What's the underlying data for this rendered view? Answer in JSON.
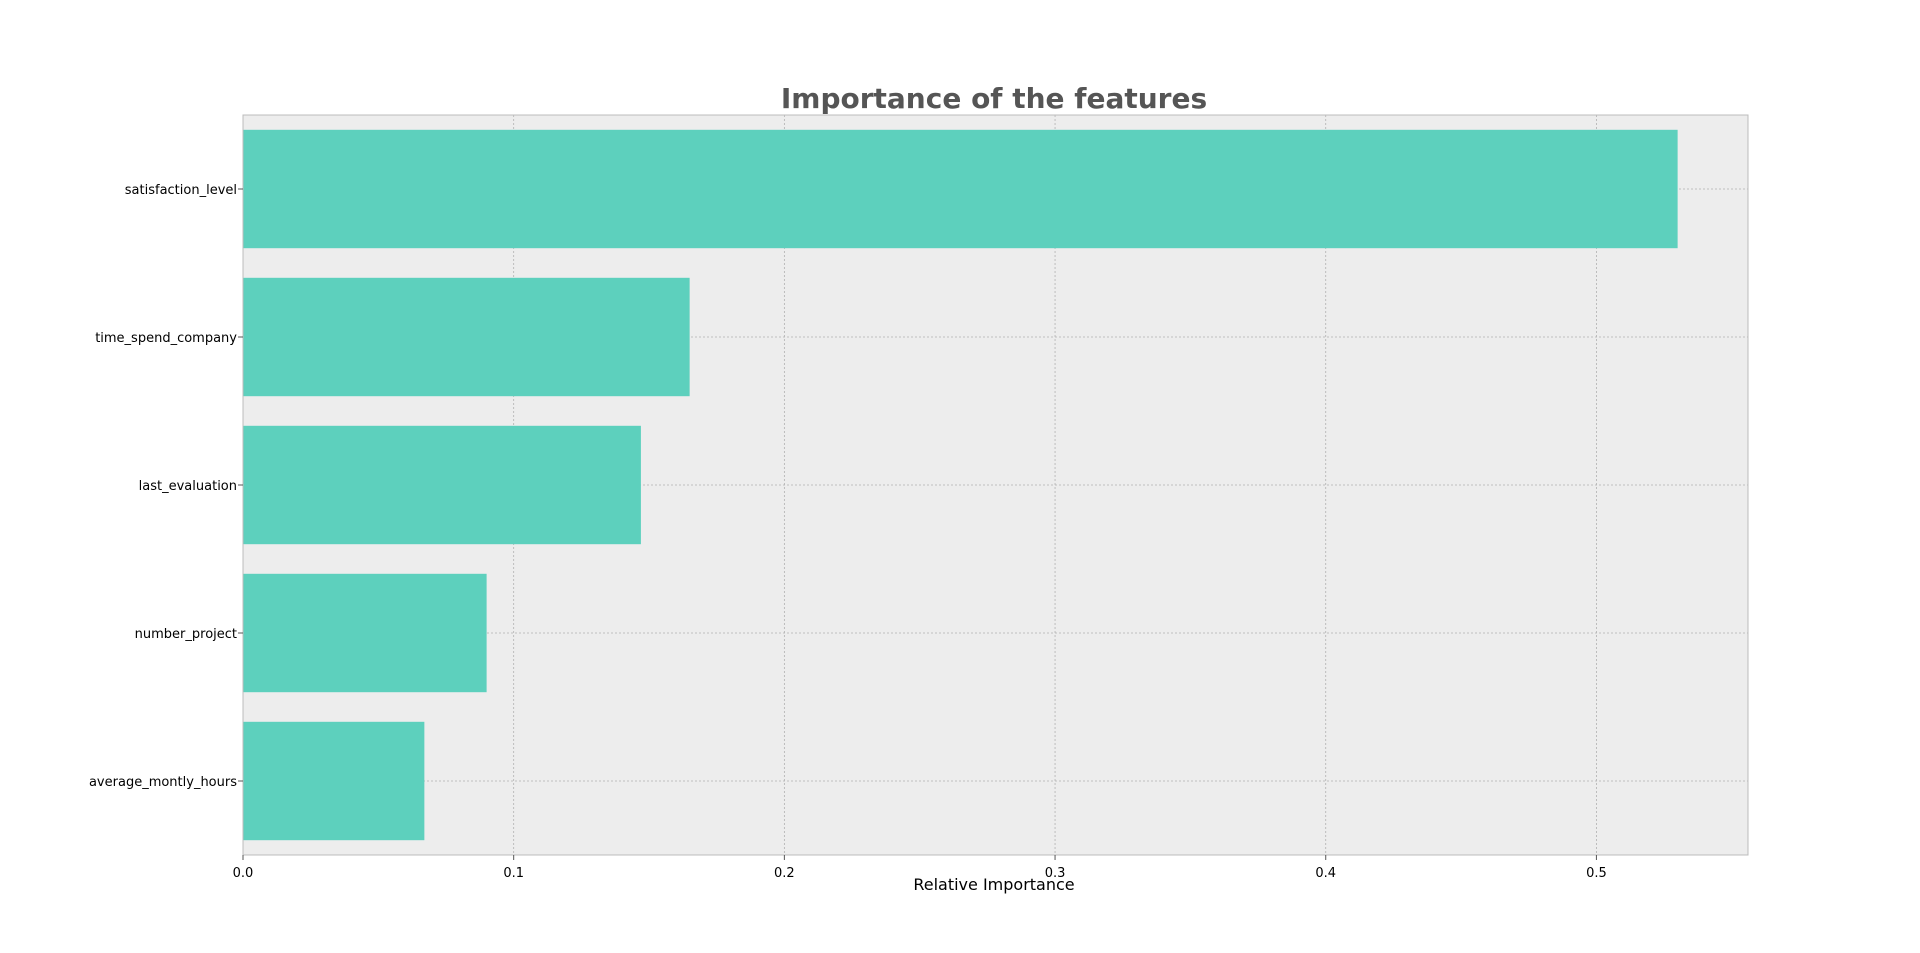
{
  "chart_data": {
    "type": "bar",
    "orientation": "horizontal",
    "title": "Importance of the features",
    "xlabel": "Relative Importance",
    "ylabel": "",
    "categories": [
      "satisfaction_level",
      "time_spend_company",
      "last_evaluation",
      "number_project",
      "average_montly_hours"
    ],
    "values": [
      0.53,
      0.165,
      0.147,
      0.09,
      0.067
    ],
    "xlim": [
      0.0,
      0.556
    ],
    "xticks": [
      0.0,
      0.1,
      0.2,
      0.3,
      0.4,
      0.5
    ],
    "xtick_labels": [
      "0.0",
      "0.1",
      "0.2",
      "0.3",
      "0.4",
      "0.5"
    ],
    "grid": true,
    "colors": {
      "bar": "#5dd0bd",
      "plot_background": "#ededed",
      "grid": "#b0b0b0",
      "title": "#555555",
      "spine": "#bcbcbc"
    }
  }
}
